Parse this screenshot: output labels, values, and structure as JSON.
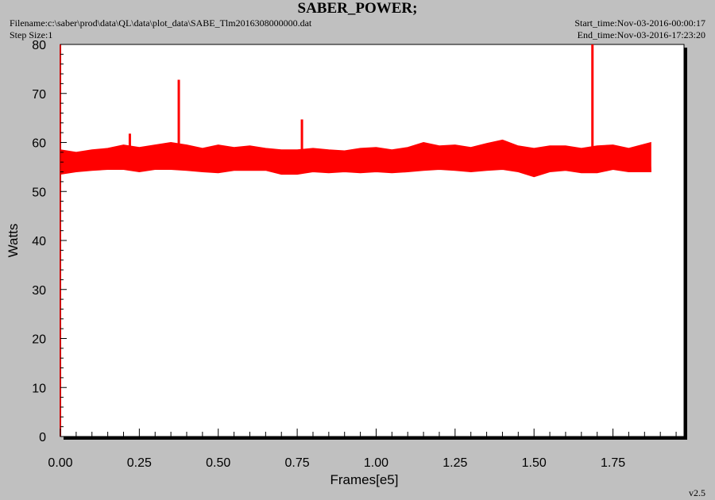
{
  "header": {
    "title": "SABER_POWER;",
    "filename": "Filename:c:\\saber\\prod\\data\\QL\\data\\plot_data\\SABE_Tlm2016308000000.dat",
    "step_size": "Step Size:1",
    "start_time": "Start_time:Nov-03-2016-00:00:17",
    "end_time": "End_time:Nov-03-2016-17:23:20"
  },
  "footer": {
    "version": "v2.5"
  },
  "colors": {
    "series": "#ff0000",
    "axis": "#cc0000",
    "plot_bg": "#ffffff",
    "page_bg": "#c0c0c0"
  },
  "chart_data": {
    "type": "line",
    "title": "SABER_POWER;",
    "xlabel": "Frames[e5]",
    "ylabel": "Watts",
    "xlim": [
      0,
      1.975
    ],
    "ylim": [
      0,
      80
    ],
    "x_ticks": [
      "0.00",
      "0.25",
      "0.50",
      "0.75",
      "1.00",
      "1.25",
      "1.50",
      "1.75"
    ],
    "y_ticks": [
      "0",
      "10",
      "20",
      "30",
      "40",
      "50",
      "60",
      "70",
      "80"
    ],
    "grid": false,
    "legend": "none",
    "series": [
      {
        "x": [
          0.0,
          0.05,
          0.1,
          0.15,
          0.2,
          0.25,
          0.3,
          0.35,
          0.4,
          0.45,
          0.5,
          0.55,
          0.6,
          0.65,
          0.7,
          0.75,
          0.8,
          0.85,
          0.9,
          0.95,
          1.0,
          1.05,
          1.1,
          1.15,
          1.2,
          1.25,
          1.3,
          1.35,
          1.4,
          1.45,
          1.5,
          1.55,
          1.6,
          1.65,
          1.7,
          1.75,
          1.8,
          1.87
        ],
        "y": [
          56.5,
          56.0,
          56.5,
          56.8,
          57.0,
          56.8,
          57.0,
          57.2,
          57.0,
          56.8,
          56.5,
          57.0,
          57.0,
          56.8,
          56.5,
          56.0,
          56.5,
          56.3,
          56.0,
          56.3,
          56.5,
          56.2,
          56.5,
          57.0,
          57.0,
          56.8,
          56.5,
          57.0,
          57.2,
          56.8,
          56.5,
          56.8,
          57.0,
          56.5,
          56.8,
          57.0,
          56.5,
          56.5
        ],
        "band": {
          "x": [
            0.0,
            0.05,
            0.1,
            0.15,
            0.2,
            0.25,
            0.3,
            0.35,
            0.4,
            0.45,
            0.5,
            0.55,
            0.6,
            0.65,
            0.7,
            0.75,
            0.8,
            0.85,
            0.9,
            0.95,
            1.0,
            1.05,
            1.1,
            1.15,
            1.2,
            1.25,
            1.3,
            1.35,
            1.4,
            1.45,
            1.5,
            1.55,
            1.6,
            1.65,
            1.7,
            1.75,
            1.8,
            1.87
          ],
          "max": [
            58.5,
            58.0,
            58.5,
            58.8,
            59.5,
            59.0,
            59.5,
            60.0,
            59.5,
            58.8,
            59.5,
            59.0,
            59.3,
            58.8,
            58.5,
            58.5,
            58.8,
            58.5,
            58.3,
            58.8,
            59.0,
            58.5,
            59.0,
            60.0,
            59.3,
            59.5,
            59.0,
            59.8,
            60.5,
            59.3,
            58.8,
            59.3,
            59.3,
            58.8,
            59.3,
            59.5,
            58.8,
            60.0
          ],
          "min": [
            53.5,
            54.0,
            54.3,
            54.5,
            54.5,
            54.0,
            54.5,
            54.5,
            54.3,
            54.0,
            53.8,
            54.3,
            54.3,
            54.3,
            53.5,
            53.5,
            54.0,
            53.8,
            54.0,
            53.8,
            54.0,
            53.8,
            54.0,
            54.3,
            54.5,
            54.3,
            54.0,
            54.3,
            54.5,
            54.0,
            53.0,
            54.0,
            54.3,
            53.8,
            53.8,
            54.5,
            54.0,
            54.0
          ]
        },
        "spikes": [
          {
            "x": 0.22,
            "y": 61.8
          },
          {
            "x": 0.375,
            "y": 72.8
          },
          {
            "x": 0.765,
            "y": 64.7
          },
          {
            "x": 1.685,
            "y": 80.0
          }
        ]
      }
    ]
  }
}
